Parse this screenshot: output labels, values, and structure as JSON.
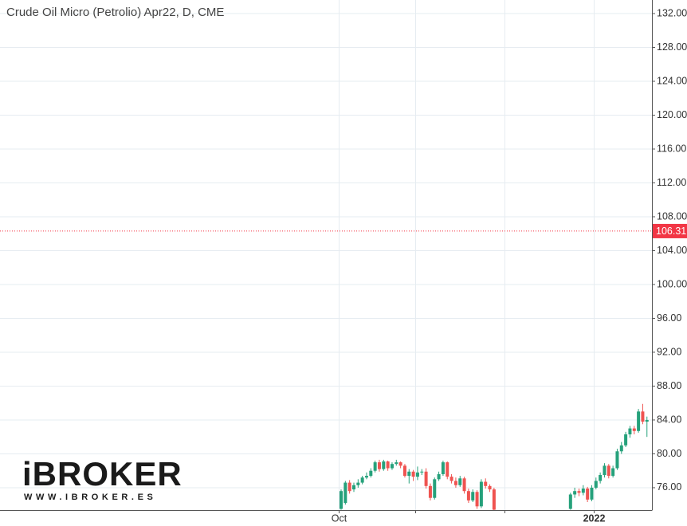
{
  "chart_data": {
    "type": "candlestick",
    "title": "Crude Oil Micro (Petrolio) Apr22, D, CME",
    "logo": "iBROKER",
    "logo_url": "WWW.IBROKER.ES",
    "categories": [
      "Oct",
      null,
      null,
      null,
      null,
      null,
      null,
      null,
      null,
      null,
      null,
      null,
      null,
      null,
      null,
      null,
      null,
      null,
      null,
      null,
      null,
      null,
      null,
      null,
      null,
      null,
      null,
      null,
      null,
      null,
      null,
      null,
      null,
      null,
      null,
      null,
      null,
      null,
      null,
      null,
      null,
      null,
      null,
      null,
      null,
      null,
      null,
      null,
      null,
      null,
      null,
      null,
      null,
      null,
      null,
      null,
      null,
      null,
      null,
      null,
      "2022",
      null,
      null,
      null,
      null,
      null,
      null,
      null,
      null,
      null,
      null,
      null,
      null
    ],
    "xticks": [
      0,
      18,
      39,
      60
    ],
    "open": [
      73.5,
      74.2,
      76.6,
      75.8,
      76.3,
      76.6,
      77.2,
      77.4,
      78.0,
      79.0,
      78.2,
      79.1,
      78.3,
      78.8,
      79.0,
      78.6,
      77.4,
      77.9,
      77.3,
      77.8,
      77.9,
      76.2,
      74.8,
      77.0,
      77.6,
      79.0,
      77.3,
      76.8,
      76.3,
      77.1,
      75.6,
      74.5,
      75.5,
      73.8,
      76.7,
      76.2,
      75.8,
      null,
      null,
      null,
      null,
      null,
      null,
      null,
      null,
      null,
      null,
      null,
      null,
      null,
      null,
      null,
      null,
      null,
      73.5,
      75.2,
      75.6,
      75.4,
      75.9,
      74.6,
      76.0,
      76.8,
      77.5,
      78.6,
      77.4,
      78.3,
      80.3,
      81.0,
      82.3,
      83.0,
      82.7,
      85.0,
      83.8
    ],
    "high": [
      75.8,
      76.8,
      76.9,
      76.6,
      77.0,
      77.4,
      77.8,
      78.3,
      79.2,
      79.3,
      79.3,
      79.2,
      79.0,
      79.3,
      79.1,
      78.8,
      78.2,
      78.1,
      78.5,
      78.2,
      78.3,
      76.5,
      77.2,
      77.9,
      79.2,
      79.1,
      77.6,
      77.2,
      77.4,
      77.3,
      75.9,
      75.8,
      75.7,
      77.0,
      77.1,
      76.4,
      76.0,
      null,
      null,
      null,
      null,
      null,
      null,
      null,
      null,
      null,
      null,
      null,
      null,
      null,
      null,
      null,
      null,
      null,
      75.4,
      76.0,
      75.9,
      76.3,
      76.1,
      76.3,
      77.2,
      77.8,
      78.9,
      78.8,
      78.6,
      80.6,
      81.4,
      82.6,
      83.3,
      83.3,
      85.3,
      85.9,
      84.4
    ],
    "low": [
      73.4,
      74.0,
      75.3,
      75.5,
      76.0,
      76.4,
      77.0,
      77.2,
      77.8,
      77.9,
      78.0,
      78.0,
      78.1,
      78.6,
      78.3,
      77.2,
      76.5,
      76.8,
      76.9,
      77.5,
      75.9,
      74.5,
      74.6,
      76.8,
      77.4,
      77.0,
      76.5,
      76.0,
      76.1,
      75.3,
      74.2,
      74.3,
      73.5,
      73.6,
      75.9,
      75.5,
      73.3,
      null,
      null,
      null,
      null,
      null,
      null,
      null,
      null,
      null,
      null,
      null,
      null,
      null,
      null,
      null,
      null,
      null,
      73.4,
      74.8,
      75.0,
      75.1,
      74.3,
      74.4,
      75.8,
      76.5,
      77.2,
      77.1,
      77.2,
      78.1,
      80.0,
      80.8,
      81.9,
      82.3,
      82.5,
      83.5,
      82.0
    ],
    "close": [
      75.6,
      76.6,
      75.6,
      76.3,
      76.6,
      77.2,
      77.4,
      78.0,
      79.0,
      78.2,
      79.1,
      78.3,
      78.8,
      79.0,
      78.6,
      77.4,
      77.9,
      77.3,
      77.8,
      77.9,
      76.2,
      74.8,
      77.0,
      77.6,
      79.0,
      77.3,
      76.8,
      76.3,
      77.1,
      75.6,
      74.5,
      75.5,
      73.8,
      76.7,
      76.2,
      75.8,
      73.4,
      null,
      null,
      null,
      null,
      null,
      null,
      null,
      null,
      null,
      null,
      null,
      null,
      null,
      null,
      null,
      null,
      null,
      75.2,
      75.6,
      75.4,
      75.9,
      74.6,
      76.0,
      76.8,
      77.5,
      78.6,
      77.4,
      78.3,
      80.3,
      81.0,
      82.3,
      83.0,
      82.7,
      85.0,
      83.8,
      84.0
    ],
    "up_color": "#26a17b",
    "down_color": "#ef5350",
    "last_price": 106.31,
    "last_price_color": "#f23645",
    "ylim": [
      73.36,
      133.6
    ],
    "yticks": [
      {
        "value": 76,
        "label": "76.00"
      },
      {
        "value": 80,
        "label": "80.00"
      },
      {
        "value": 84,
        "label": "84.00"
      },
      {
        "value": 88,
        "label": "88.00"
      },
      {
        "value": 92,
        "label": "92.00"
      },
      {
        "value": 96,
        "label": "96.00"
      },
      {
        "value": 100,
        "label": "100.00"
      },
      {
        "value": 104,
        "label": "104.00"
      },
      {
        "value": 108,
        "label": "108.00"
      },
      {
        "value": 112,
        "label": "112.00"
      },
      {
        "value": 116,
        "label": "116.00"
      },
      {
        "value": 120,
        "label": "120.00"
      },
      {
        "value": 124,
        "label": "124.00"
      },
      {
        "value": 128,
        "label": "128.00"
      },
      {
        "value": 132,
        "label": "132.00"
      }
    ],
    "grid": true
  }
}
